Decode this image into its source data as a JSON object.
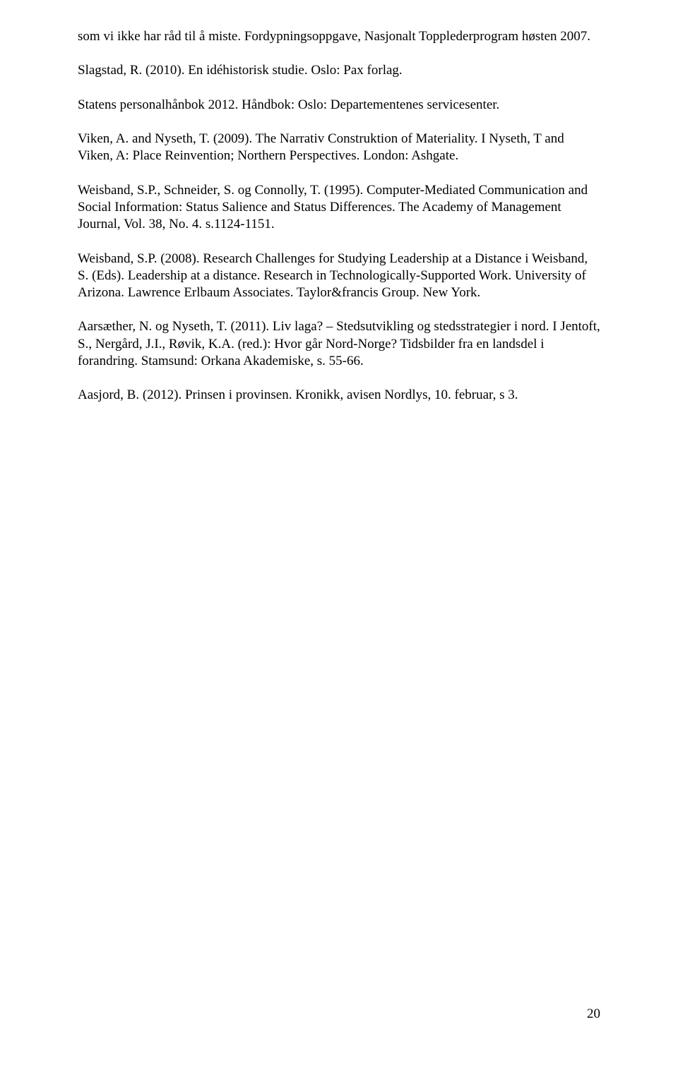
{
  "paragraphs": [
    "som vi ikke har råd til å miste. Fordypningsoppgave, Nasjonalt Topplederprogram høsten 2007.",
    "Slagstad, R. (2010). En idéhistorisk studie. Oslo: Pax forlag.",
    "Statens personalhånbok 2012. Håndbok: Oslo: Departementenes servicesenter.",
    "Viken, A. and Nyseth, T. (2009). The Narrativ Construktion of Materiality. I Nyseth, T and Viken, A: Place Reinvention; Northern Perspectives. London: Ashgate.",
    "Weisband, S.P., Schneider, S. og Connolly, T. (1995). Computer-Mediated Communication and Social Information: Status Salience and Status Differences. The Academy of Management Journal, Vol. 38, No. 4. s.1124-1151.",
    "Weisband, S.P. (2008). Research Challenges for Studying Leadership at a Distance i Weisband, S. (Eds). Leadership at a distance. Research in Technologically-Supported Work. University of Arizona. Lawrence Erlbaum Associates. Taylor&francis Group. New York.",
    "Aarsæther, N. og Nyseth, T. (2011). Liv laga? – Stedsutvikling og stedsstrategier i nord. I Jentoft, S., Nergård, J.I., Røvik, K.A. (red.): Hvor går Nord-Norge? Tidsbilder fra en landsdel i forandring. Stamsund: Orkana Akademiske, s. 55-66.",
    "Aasjord, B. (2012). Prinsen i provinsen. Kronikk, avisen Nordlys, 10. februar, s 3."
  ],
  "page_number": "20"
}
